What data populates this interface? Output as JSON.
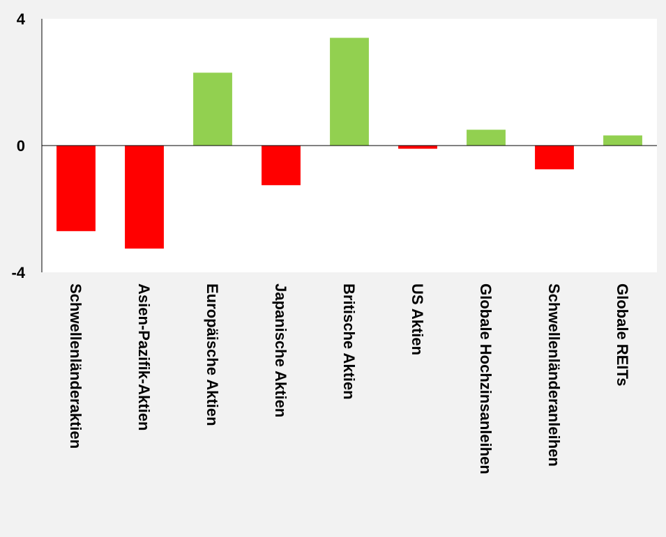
{
  "chart_data": {
    "type": "bar",
    "categories": [
      "Schwellenländeraktien",
      "Asien-Pazifik-Aktien",
      "Europäische Aktien",
      "Japanische Aktien",
      "Britische Aktien",
      "US Aktien",
      "Globale Hochzinsanleihen",
      "Schwellenländeranleihen",
      "Globale REITs"
    ],
    "values": [
      -2.7,
      -3.25,
      2.3,
      -1.25,
      3.4,
      -0.1,
      0.5,
      -0.75,
      0.32
    ],
    "ylim": [
      -4,
      4
    ],
    "yticks": [
      -4,
      0,
      4
    ],
    "ytick_labels": [
      "-4",
      "0",
      "4"
    ],
    "colors": {
      "positive": "#92d050",
      "negative": "#ff0000"
    },
    "grid": false,
    "legend": "none",
    "title": "",
    "xlabel": "",
    "ylabel": ""
  }
}
